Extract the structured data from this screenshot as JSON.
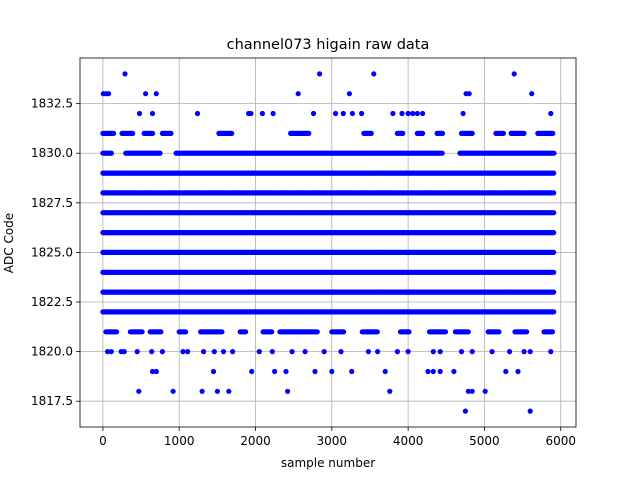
{
  "chart_data": {
    "type": "scatter",
    "title": "channel073 higain raw data",
    "xlabel": "sample number",
    "ylabel": "ADC Code",
    "xlim": [
      -300,
      6200
    ],
    "ylim": [
      1816.2,
      1834.8
    ],
    "xticks": [
      0,
      1000,
      2000,
      3000,
      4000,
      5000,
      6000
    ],
    "xtick_labels": [
      "0",
      "1000",
      "2000",
      "3000",
      "4000",
      "5000",
      "6000"
    ],
    "yticks": [
      1817.5,
      1820.0,
      1822.5,
      1825.0,
      1827.5,
      1830.0,
      1832.5
    ],
    "ytick_labels": [
      "1817.5",
      "1820.0",
      "1822.5",
      "1825.0",
      "1827.5",
      "1830.0",
      "1832.5"
    ],
    "grid": true,
    "marker_color": "#0000ff",
    "n_samples": 5920,
    "series": [
      {
        "rows": [
          {
            "y": 1822,
            "segments": [
              [
                0,
                5920
              ]
            ]
          },
          {
            "y": 1823,
            "segments": [
              [
                0,
                5920
              ]
            ]
          },
          {
            "y": 1824,
            "segments": [
              [
                0,
                5920
              ]
            ]
          },
          {
            "y": 1825,
            "segments": [
              [
                0,
                5920
              ]
            ]
          },
          {
            "y": 1826,
            "segments": [
              [
                0,
                5920
              ]
            ]
          },
          {
            "y": 1827,
            "segments": [
              [
                0,
                5920
              ]
            ]
          },
          {
            "y": 1828,
            "segments": [
              [
                0,
                5920
              ]
            ]
          },
          {
            "y": 1829,
            "segments": [
              [
                0,
                5920
              ]
            ]
          },
          {
            "y": 1830,
            "segments": [
              [
                0,
                120
              ],
              [
                300,
                760
              ],
              [
                960,
                4450
              ],
              [
                4680,
                5920
              ]
            ]
          },
          {
            "y": 1821,
            "segments": [
              [
                40,
                190
              ],
              [
                360,
                520
              ],
              [
                620,
                760
              ],
              [
                1000,
                1090
              ],
              [
                1280,
                1560
              ],
              [
                1800,
                1880
              ],
              [
                2100,
                2220
              ],
              [
                2320,
                2820
              ],
              [
                3000,
                3160
              ],
              [
                3400,
                3600
              ],
              [
                3900,
                4020
              ],
              [
                4280,
                4500
              ],
              [
                4620,
                4800
              ],
              [
                5050,
                5200
              ],
              [
                5400,
                5560
              ],
              [
                5780,
                5900
              ]
            ]
          },
          {
            "y": 1831,
            "segments": [
              [
                0,
                150
              ],
              [
                250,
                400
              ],
              [
                540,
                660
              ],
              [
                780,
                900
              ],
              [
                1520,
                1700
              ],
              [
                2460,
                2700
              ],
              [
                3420,
                3520
              ],
              [
                3860,
                3940
              ],
              [
                4120,
                4200
              ],
              [
                4380,
                4460
              ],
              [
                4700,
                4840
              ],
              [
                5150,
                5260
              ],
              [
                5350,
                5520
              ],
              [
                5700,
                5900
              ]
            ]
          }
        ],
        "points": [
          {
            "x": 5,
            "y": 1833
          },
          {
            "x": 40,
            "y": 1833
          },
          {
            "x": 75,
            "y": 1833
          },
          {
            "x": 290,
            "y": 1834
          },
          {
            "x": 560,
            "y": 1833
          },
          {
            "x": 700,
            "y": 1833
          },
          {
            "x": 2560,
            "y": 1833
          },
          {
            "x": 2840,
            "y": 1834
          },
          {
            "x": 3230,
            "y": 1833
          },
          {
            "x": 3550,
            "y": 1834
          },
          {
            "x": 4760,
            "y": 1833
          },
          {
            "x": 4800,
            "y": 1833
          },
          {
            "x": 5390,
            "y": 1834
          },
          {
            "x": 5620,
            "y": 1833
          },
          {
            "x": 480,
            "y": 1832
          },
          {
            "x": 650,
            "y": 1832
          },
          {
            "x": 1240,
            "y": 1832
          },
          {
            "x": 1910,
            "y": 1832
          },
          {
            "x": 1940,
            "y": 1832
          },
          {
            "x": 2090,
            "y": 1832
          },
          {
            "x": 2230,
            "y": 1832
          },
          {
            "x": 2760,
            "y": 1832
          },
          {
            "x": 3050,
            "y": 1832
          },
          {
            "x": 3150,
            "y": 1832
          },
          {
            "x": 3270,
            "y": 1832
          },
          {
            "x": 3390,
            "y": 1832
          },
          {
            "x": 3800,
            "y": 1832
          },
          {
            "x": 3920,
            "y": 1832
          },
          {
            "x": 4000,
            "y": 1832
          },
          {
            "x": 4060,
            "y": 1832
          },
          {
            "x": 4120,
            "y": 1832
          },
          {
            "x": 4190,
            "y": 1832
          },
          {
            "x": 4720,
            "y": 1832
          },
          {
            "x": 5870,
            "y": 1832
          },
          {
            "x": 60,
            "y": 1820
          },
          {
            "x": 110,
            "y": 1820
          },
          {
            "x": 240,
            "y": 1820
          },
          {
            "x": 280,
            "y": 1820
          },
          {
            "x": 450,
            "y": 1820
          },
          {
            "x": 640,
            "y": 1820
          },
          {
            "x": 780,
            "y": 1820
          },
          {
            "x": 1050,
            "y": 1820
          },
          {
            "x": 1110,
            "y": 1820
          },
          {
            "x": 1320,
            "y": 1820
          },
          {
            "x": 1460,
            "y": 1820
          },
          {
            "x": 1580,
            "y": 1820
          },
          {
            "x": 1700,
            "y": 1820
          },
          {
            "x": 2050,
            "y": 1820
          },
          {
            "x": 2220,
            "y": 1820
          },
          {
            "x": 2480,
            "y": 1820
          },
          {
            "x": 2650,
            "y": 1820
          },
          {
            "x": 2900,
            "y": 1820
          },
          {
            "x": 3120,
            "y": 1820
          },
          {
            "x": 3480,
            "y": 1820
          },
          {
            "x": 3600,
            "y": 1820
          },
          {
            "x": 3860,
            "y": 1820
          },
          {
            "x": 4000,
            "y": 1820
          },
          {
            "x": 4330,
            "y": 1820
          },
          {
            "x": 4420,
            "y": 1820
          },
          {
            "x": 4700,
            "y": 1820
          },
          {
            "x": 4840,
            "y": 1820
          },
          {
            "x": 5100,
            "y": 1820
          },
          {
            "x": 5330,
            "y": 1820
          },
          {
            "x": 5520,
            "y": 1820
          },
          {
            "x": 5600,
            "y": 1820
          },
          {
            "x": 5870,
            "y": 1820
          },
          {
            "x": 650,
            "y": 1819
          },
          {
            "x": 700,
            "y": 1819
          },
          {
            "x": 1450,
            "y": 1819
          },
          {
            "x": 1950,
            "y": 1819
          },
          {
            "x": 2250,
            "y": 1819
          },
          {
            "x": 2400,
            "y": 1819
          },
          {
            "x": 2780,
            "y": 1819
          },
          {
            "x": 3000,
            "y": 1819
          },
          {
            "x": 3260,
            "y": 1819
          },
          {
            "x": 3700,
            "y": 1819
          },
          {
            "x": 4260,
            "y": 1819
          },
          {
            "x": 4330,
            "y": 1819
          },
          {
            "x": 4420,
            "y": 1819
          },
          {
            "x": 4600,
            "y": 1819
          },
          {
            "x": 5280,
            "y": 1819
          },
          {
            "x": 5440,
            "y": 1819
          },
          {
            "x": 470,
            "y": 1818
          },
          {
            "x": 920,
            "y": 1818
          },
          {
            "x": 1300,
            "y": 1818
          },
          {
            "x": 1500,
            "y": 1818
          },
          {
            "x": 1650,
            "y": 1818
          },
          {
            "x": 2420,
            "y": 1818
          },
          {
            "x": 3760,
            "y": 1818
          },
          {
            "x": 4790,
            "y": 1818
          },
          {
            "x": 4840,
            "y": 1818
          },
          {
            "x": 5010,
            "y": 1818
          },
          {
            "x": 4750,
            "y": 1817
          },
          {
            "x": 5600,
            "y": 1817
          }
        ]
      }
    ]
  }
}
